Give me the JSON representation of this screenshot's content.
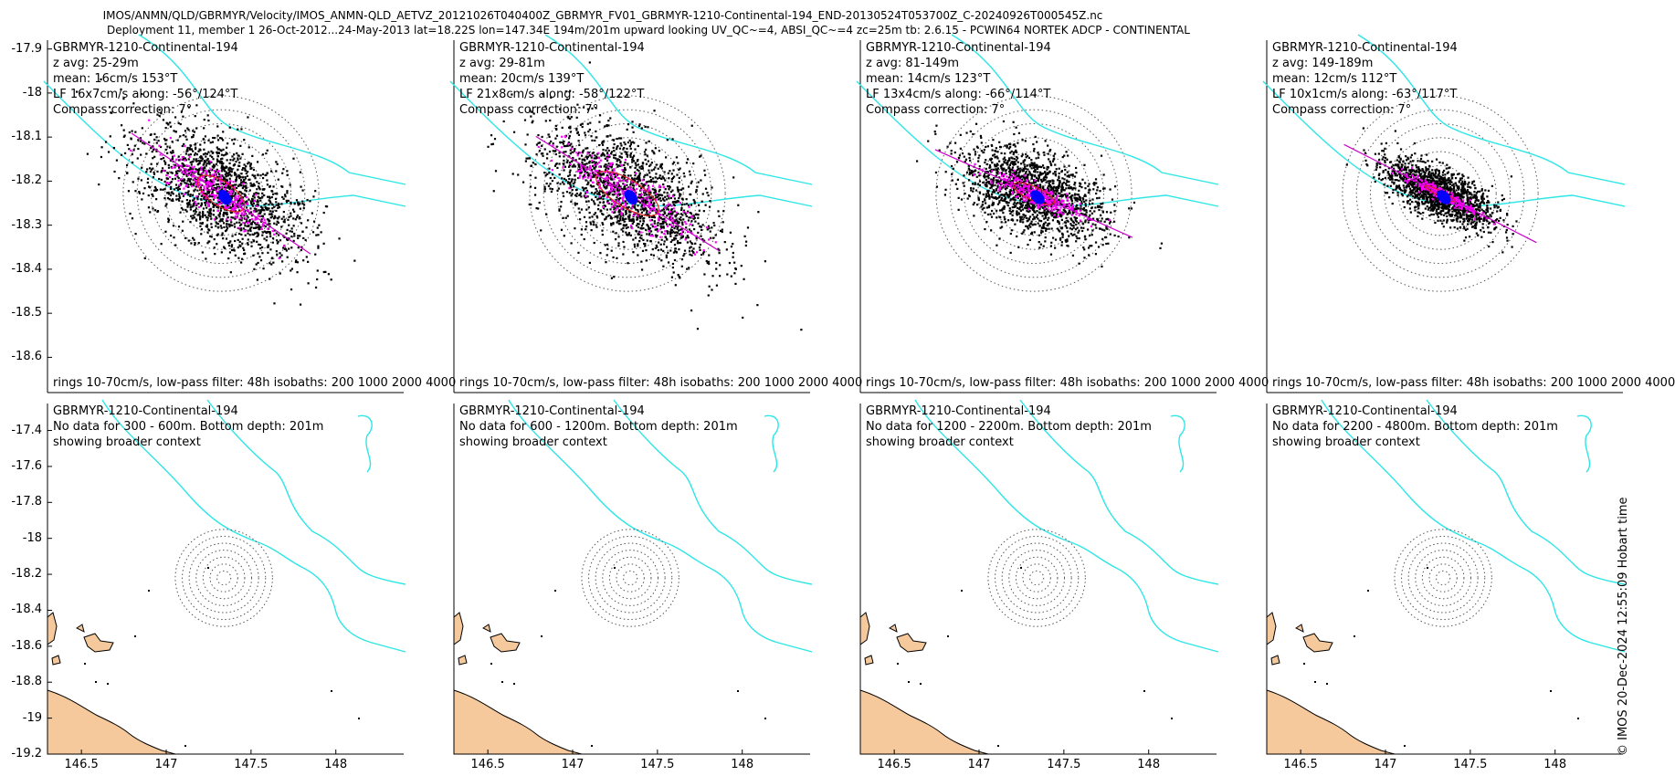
{
  "title_line1": "IMOS/ANMN/QLD/GBRMYR/Velocity/IMOS_ANMN-QLD_AETVZ_20121026T040400Z_GBRMYR_FV01_GBRMYR-1210-Continental-194_END-20130524T053700Z_C-20240926T000545Z.nc",
  "title_line2": "Deployment 11, member 1 26-Oct-2012...24-May-2013 lat=18.22S lon=147.34E 194m/201m upward looking UV_QC~=4, ABSI_QC~=4 zc=25m tb: 2.6.15 - PCWIN64 NORTEK ADCP - CONTINENTAL",
  "watermark": "© IMOS 20-Dec-2024 12:55:09 Hobart time",
  "colors": {
    "isobath": "#2ee6e6",
    "scatter": "#000000",
    "lowpass": "#ff00ff",
    "mean": "#0000ff",
    "major_axis": "#cc00cc",
    "land": "#f5c99b",
    "rings": "#555555"
  },
  "chart_data": [
    {
      "type": "scatter",
      "row": "top",
      "ylim": [
        -18.68,
        -17.88
      ],
      "xlim": [
        146.3,
        148.4
      ],
      "yticks": [
        "-17.9",
        "-18",
        "-18.1",
        "-18.2",
        "-18.3",
        "-18.4",
        "-18.5",
        "-18.6"
      ],
      "ytick_values": [
        -17.9,
        -18.0,
        -18.1,
        -18.2,
        -18.3,
        -18.4,
        -18.5,
        -18.6
      ],
      "footer": "rings 10-70cm/s, low-pass filter: 48h isobaths: 200 1000 2000 4000",
      "panels": [
        {
          "name": "GBRMYR-1210-Continental-194",
          "z_avg": "z avg: 25-29m",
          "mean": "mean: 16cm/s 153°T",
          "lf": "LF 16x7cm/s along: -56°/124°T",
          "compass": "Compass correction: 7°",
          "spread_u": 55,
          "spread_v": 28,
          "angle_deg": -34,
          "lf_u": 16,
          "lf_v": 7
        },
        {
          "name": "GBRMYR-1210-Continental-194",
          "z_avg": "z avg: 29-81m",
          "mean": "mean: 20cm/s 139°T",
          "lf": "LF 21x8cm/s along: -58°/122°T",
          "compass": "Compass correction: 7°",
          "spread_u": 60,
          "spread_v": 30,
          "angle_deg": -32,
          "lf_u": 21,
          "lf_v": 8
        },
        {
          "name": "GBRMYR-1210-Continental-194",
          "z_avg": "z avg: 81-149m",
          "mean": "mean: 14cm/s 123°T",
          "lf": "LF 13x4cm/s along: -66°/114°T",
          "compass": "Compass correction: 7°",
          "spread_u": 45,
          "spread_v": 22,
          "angle_deg": -24,
          "lf_u": 13,
          "lf_v": 4
        },
        {
          "name": "GBRMYR-1210-Continental-194",
          "z_avg": "z avg: 149-189m",
          "mean": "mean: 12cm/s 112°T",
          "lf": "LF 10x1cm/s along: -63°/117°T",
          "compass": "Compass correction: 7°",
          "spread_u": 34,
          "spread_v": 13,
          "angle_deg": -27,
          "lf_u": 10,
          "lf_v": 1
        }
      ]
    },
    {
      "type": "map",
      "row": "bottom",
      "ylim": [
        -19.2,
        -17.25
      ],
      "xlim": [
        146.3,
        148.4
      ],
      "yticks": [
        "-17.4",
        "-17.6",
        "-17.8",
        "-18",
        "-18.2",
        "-18.4",
        "-18.6",
        "-18.8",
        "-19",
        "-19.2"
      ],
      "ytick_values": [
        -17.4,
        -17.6,
        -17.8,
        -18.0,
        -18.2,
        -18.4,
        -18.6,
        -18.8,
        -19.0,
        -19.2
      ],
      "xticks": [
        "146.5",
        "147",
        "147.5",
        "148"
      ],
      "xtick_values": [
        146.5,
        147.0,
        147.5,
        148.0
      ],
      "panels": [
        {
          "name": "GBRMYR-1210-Continental-194",
          "msg": "No data for 300 - 600m. Bottom depth: 201m",
          "context": "showing broader context"
        },
        {
          "name": "GBRMYR-1210-Continental-194",
          "msg": "No data for 600 - 1200m. Bottom depth: 201m",
          "context": "showing broader context"
        },
        {
          "name": "GBRMYR-1210-Continental-194",
          "msg": "No data for 1200 - 2200m. Bottom depth: 201m",
          "context": "showing broader context"
        },
        {
          "name": "GBRMYR-1210-Continental-194",
          "msg": "No data for 2200 - 4800m. Bottom depth: 201m",
          "context": "showing broader context"
        }
      ]
    }
  ]
}
